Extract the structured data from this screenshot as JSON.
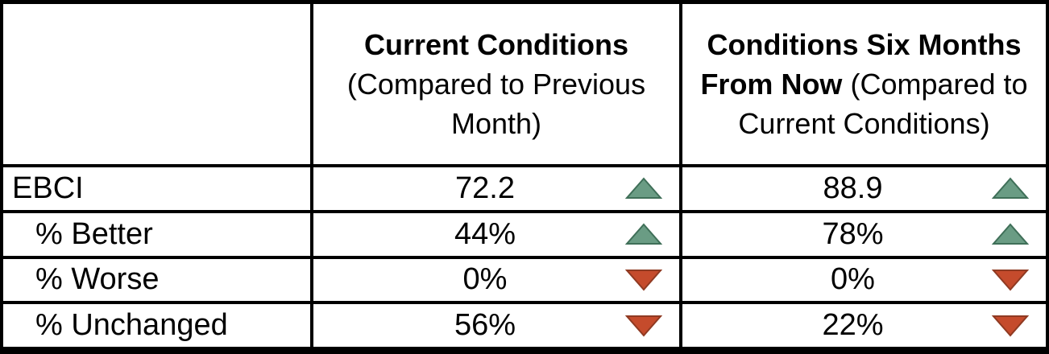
{
  "chart_data": {
    "type": "table",
    "title": "",
    "columns": [
      {
        "bold": "",
        "rest": ""
      },
      {
        "bold": "Current Conditions",
        "rest": "(Compared to Previous Month)"
      },
      {
        "bold": "Conditions Six Months From Now",
        "rest": "(Compared to Current Conditions)"
      }
    ],
    "rows": [
      {
        "label": "EBCI",
        "indent": false,
        "cells": [
          {
            "value": "72.2",
            "trend": "up"
          },
          {
            "value": "88.9",
            "trend": "up"
          }
        ]
      },
      {
        "label": "% Better",
        "indent": true,
        "cells": [
          {
            "value": "44%",
            "trend": "up"
          },
          {
            "value": "78%",
            "trend": "up"
          }
        ]
      },
      {
        "label": "% Worse",
        "indent": true,
        "cells": [
          {
            "value": "0%",
            "trend": "down"
          },
          {
            "value": "0%",
            "trend": "down"
          }
        ]
      },
      {
        "label": "% Unchanged",
        "indent": true,
        "cells": [
          {
            "value": "56%",
            "trend": "down"
          },
          {
            "value": "22%",
            "trend": "down"
          }
        ]
      }
    ],
    "colors": {
      "trend_up_fill": "#6A9C84",
      "trend_up_border": "#3F6F58",
      "trend_down_fill": "#C54B2C",
      "trend_down_border": "#8F3A22",
      "grid_border": "#000000",
      "background": "#FFFFFF",
      "text": "#000000"
    }
  }
}
